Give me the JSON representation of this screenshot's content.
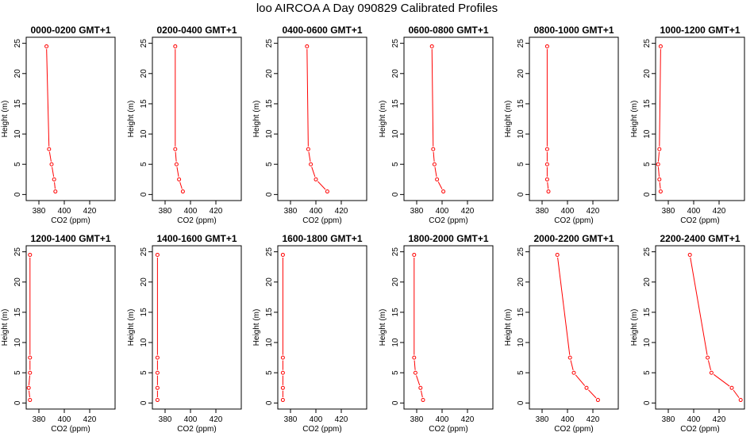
{
  "figure": {
    "title": "loo AIRCOA A  Day 090829  Calibrated Profiles"
  },
  "colors": {
    "profile": "#ff0000",
    "axis": "#000000"
  },
  "chart_data": [
    {
      "type": "line",
      "title": "0000-0200 GMT+1",
      "xlabel": "CO2 (ppm)",
      "ylabel": "Height (m)",
      "xlim": [
        370,
        440
      ],
      "ylim": [
        -1,
        26
      ],
      "xticks": [
        380,
        400,
        420
      ],
      "yticks": [
        0,
        5,
        10,
        15,
        20,
        25
      ],
      "x": [
        386,
        388,
        390,
        392,
        393
      ],
      "y": [
        24.5,
        7.5,
        5,
        2.5,
        0.5
      ]
    },
    {
      "type": "line",
      "title": "0200-0400 GMT+1",
      "xlabel": "CO2 (ppm)",
      "ylabel": "Height (m)",
      "xlim": [
        370,
        440
      ],
      "ylim": [
        -1,
        26
      ],
      "xticks": [
        380,
        400,
        420
      ],
      "yticks": [
        0,
        5,
        10,
        15,
        20,
        25
      ],
      "x": [
        388,
        388,
        389,
        391,
        394
      ],
      "y": [
        24.5,
        7.5,
        5,
        2.5,
        0.5
      ]
    },
    {
      "type": "line",
      "title": "0400-0600 GMT+1",
      "xlabel": "CO2 (ppm)",
      "ylabel": "Height (m)",
      "xlim": [
        370,
        440
      ],
      "ylim": [
        -1,
        26
      ],
      "xticks": [
        380,
        400,
        420
      ],
      "yticks": [
        0,
        5,
        10,
        15,
        20,
        25
      ],
      "x": [
        393,
        394,
        396,
        400,
        409
      ],
      "y": [
        24.5,
        7.5,
        5,
        2.5,
        0.5
      ]
    },
    {
      "type": "line",
      "title": "0600-0800 GMT+1",
      "xlabel": "CO2 (ppm)",
      "ylabel": "Height (m)",
      "xlim": [
        370,
        440
      ],
      "ylim": [
        -1,
        26
      ],
      "xticks": [
        380,
        400,
        420
      ],
      "yticks": [
        0,
        5,
        10,
        15,
        20,
        25
      ],
      "x": [
        392,
        393,
        394,
        396,
        401
      ],
      "y": [
        24.5,
        7.5,
        5,
        2.5,
        0.5
      ]
    },
    {
      "type": "line",
      "title": "0800-1000 GMT+1",
      "xlabel": "CO2 (ppm)",
      "ylabel": "Height (m)",
      "xlim": [
        370,
        440
      ],
      "ylim": [
        -1,
        26
      ],
      "xticks": [
        380,
        400,
        420
      ],
      "yticks": [
        0,
        5,
        10,
        15,
        20,
        25
      ],
      "x": [
        384,
        384,
        384,
        384,
        385
      ],
      "y": [
        24.5,
        7.5,
        5,
        2.5,
        0.5
      ]
    },
    {
      "type": "line",
      "title": "1000-1200 GMT+1",
      "xlabel": "CO2 (ppm)",
      "ylabel": "Height (m)",
      "xlim": [
        370,
        440
      ],
      "ylim": [
        -1,
        26
      ],
      "xticks": [
        380,
        400,
        420
      ],
      "yticks": [
        0,
        5,
        10,
        15,
        20,
        25
      ],
      "x": [
        374,
        373,
        372,
        373,
        374
      ],
      "y": [
        24.5,
        7.5,
        5,
        2.5,
        0.5
      ]
    },
    {
      "type": "line",
      "title": "1200-1400 GMT+1",
      "xlabel": "CO2 (ppm)",
      "ylabel": "Height (m)",
      "xlim": [
        370,
        440
      ],
      "ylim": [
        -1,
        26
      ],
      "xticks": [
        380,
        400,
        420
      ],
      "yticks": [
        0,
        5,
        10,
        15,
        20,
        25
      ],
      "x": [
        373,
        373,
        373,
        372,
        373
      ],
      "y": [
        24.5,
        7.5,
        5,
        2.5,
        0.5
      ]
    },
    {
      "type": "line",
      "title": "1400-1600 GMT+1",
      "xlabel": "CO2 (ppm)",
      "ylabel": "Height (m)",
      "xlim": [
        370,
        440
      ],
      "ylim": [
        -1,
        26
      ],
      "xticks": [
        380,
        400,
        420
      ],
      "yticks": [
        0,
        5,
        10,
        15,
        20,
        25
      ],
      "x": [
        374,
        374,
        374,
        374,
        374
      ],
      "y": [
        24.5,
        7.5,
        5,
        2.5,
        0.5
      ]
    },
    {
      "type": "line",
      "title": "1600-1800 GMT+1",
      "xlabel": "CO2 (ppm)",
      "ylabel": "Height (m)",
      "xlim": [
        370,
        440
      ],
      "ylim": [
        -1,
        26
      ],
      "xticks": [
        380,
        400,
        420
      ],
      "yticks": [
        0,
        5,
        10,
        15,
        20,
        25
      ],
      "x": [
        374,
        374,
        374,
        374,
        374
      ],
      "y": [
        24.5,
        7.5,
        5,
        2.5,
        0.5
      ]
    },
    {
      "type": "line",
      "title": "1800-2000 GMT+1",
      "xlabel": "CO2 (ppm)",
      "ylabel": "Height (m)",
      "xlim": [
        370,
        440
      ],
      "ylim": [
        -1,
        26
      ],
      "xticks": [
        380,
        400,
        420
      ],
      "yticks": [
        0,
        5,
        10,
        15,
        20,
        25
      ],
      "x": [
        378,
        378,
        379,
        383,
        385
      ],
      "y": [
        24.5,
        7.5,
        5,
        2.5,
        0.5
      ]
    },
    {
      "type": "line",
      "title": "2000-2200 GMT+1",
      "xlabel": "CO2 (ppm)",
      "ylabel": "Height (m)",
      "xlim": [
        370,
        440
      ],
      "ylim": [
        -1,
        26
      ],
      "xticks": [
        380,
        400,
        420
      ],
      "yticks": [
        0,
        5,
        10,
        15,
        20,
        25
      ],
      "x": [
        392,
        402,
        405,
        415,
        424
      ],
      "y": [
        24.5,
        7.5,
        5,
        2.5,
        0.5
      ]
    },
    {
      "type": "line",
      "title": "2200-2400 GMT+1",
      "xlabel": "CO2 (ppm)",
      "ylabel": "Height (m)",
      "xlim": [
        370,
        440
      ],
      "ylim": [
        -1,
        26
      ],
      "xticks": [
        380,
        400,
        420
      ],
      "yticks": [
        0,
        5,
        10,
        15,
        20,
        25
      ],
      "x": [
        397,
        411,
        414,
        430,
        437
      ],
      "y": [
        24.5,
        7.5,
        5,
        2.5,
        0.5
      ]
    }
  ]
}
